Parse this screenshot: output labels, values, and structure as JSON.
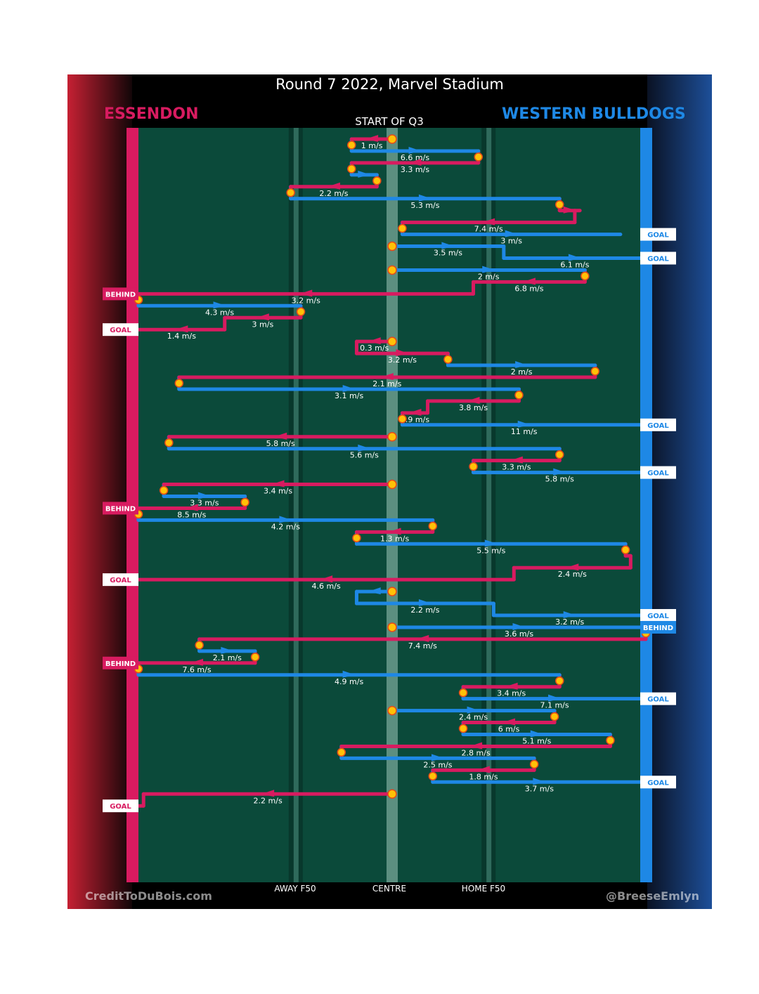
{
  "header": {
    "title": "Round 7 2022, Marvel Stadium",
    "subtitle": "START OF Q3",
    "home_team": "ESSENDON",
    "away_team": "WESTERN BULLDOGS"
  },
  "footer": {
    "credit_left": "CreditToDuBois.com",
    "credit_right": "@BreeseEmlyn"
  },
  "colors": {
    "essendon": "#d81b60",
    "bulldogs": "#1e88e5",
    "field": "#0b4a3a",
    "marker_fill": "#ffc107",
    "marker_ring": "#e64a19"
  },
  "chart_data": {
    "type": "line",
    "description_units": "x = field position (0 = Essendon goal line, 100 = Western Bulldogs goal line); each chain ends at a restart, goal or behind",
    "x_tick_labels": [
      {
        "label": "AWAY F50",
        "x": 31
      },
      {
        "label": "CENTRE",
        "x": 50
      },
      {
        "label": "HOME F50",
        "x": 69
      }
    ],
    "outcome_labels": {
      "goal": "GOAL",
      "behind": "BEHIND"
    },
    "segments": [
      {
        "team": "essendon",
        "speed": "1 m/s",
        "from": 50,
        "to": 42
      },
      {
        "team": "bulldogs",
        "speed": "6.6 m/s",
        "from": 42,
        "to": 67
      },
      {
        "team": "essendon",
        "speed": "3.3 m/s",
        "from": 67,
        "to": 42
      },
      {
        "team": "bulldogs",
        "speed": "",
        "from": 42,
        "to": 47
      },
      {
        "team": "essendon",
        "speed": "2.2 m/s",
        "from": 47,
        "to": 30
      },
      {
        "team": "bulldogs",
        "speed": "5.3 m/s",
        "from": 30,
        "to": 83
      },
      {
        "team": "essendon",
        "speed": "",
        "from": 83,
        "to": 87
      },
      {
        "team": "essendon",
        "speed": "7.4 m/s",
        "from": 86,
        "to": 52
      },
      {
        "team": "bulldogs",
        "speed": "3 m/s",
        "from": 52,
        "to": 95,
        "outcome": "goal"
      },
      {
        "team": "bulldogs",
        "speed": "3.5 m/s",
        "from": 50,
        "to": 72
      },
      {
        "team": "bulldogs",
        "speed": "6.1 m/s",
        "from": 72,
        "to": 100,
        "outcome": "goal"
      },
      {
        "team": "bulldogs",
        "speed": "2 m/s",
        "from": 50,
        "to": 88
      },
      {
        "team": "essendon",
        "speed": "6.8 m/s",
        "from": 88,
        "to": 66
      },
      {
        "team": "essendon",
        "speed": "3.2 m/s",
        "from": 66,
        "to": 0,
        "outcome": "behind"
      },
      {
        "team": "bulldogs",
        "speed": "4.3 m/s",
        "from": 0,
        "to": 32
      },
      {
        "team": "essendon",
        "speed": "3 m/s",
        "from": 32,
        "to": 17
      },
      {
        "team": "essendon",
        "speed": "1.4 m/s",
        "from": 17,
        "to": 0,
        "outcome": "goal"
      },
      {
        "team": "essendon",
        "speed": "0.3 m/s",
        "from": 50,
        "to": 43
      },
      {
        "team": "essendon",
        "speed": "3.2 m/s",
        "from": 43,
        "to": 61
      },
      {
        "team": "bulldogs",
        "speed": "2 m/s",
        "from": 61,
        "to": 90
      },
      {
        "team": "essendon",
        "speed": "2.1 m/s",
        "from": 90,
        "to": 8
      },
      {
        "team": "bulldogs",
        "speed": "3.1 m/s",
        "from": 8,
        "to": 75
      },
      {
        "team": "essendon",
        "speed": "3.8 m/s",
        "from": 75,
        "to": 57
      },
      {
        "team": "essendon",
        "speed": "0.9 m/s",
        "from": 57,
        "to": 52
      },
      {
        "team": "bulldogs",
        "speed": "11 m/s",
        "from": 52,
        "to": 100,
        "outcome": "goal"
      },
      {
        "team": "essendon",
        "speed": "5.8 m/s",
        "from": 50,
        "to": 6
      },
      {
        "team": "bulldogs",
        "speed": "5.6 m/s",
        "from": 6,
        "to": 83
      },
      {
        "team": "essendon",
        "speed": "3.3 m/s",
        "from": 83,
        "to": 66
      },
      {
        "team": "bulldogs",
        "speed": "5.8 m/s",
        "from": 66,
        "to": 100,
        "outcome": "goal"
      },
      {
        "team": "essendon",
        "speed": "3.4 m/s",
        "from": 50,
        "to": 5
      },
      {
        "team": "bulldogs",
        "speed": "3.3 m/s",
        "from": 5,
        "to": 21
      },
      {
        "team": "essendon",
        "speed": "8.5 m/s",
        "from": 21,
        "to": 0,
        "outcome": "behind"
      },
      {
        "team": "bulldogs",
        "speed": "4.2 m/s",
        "from": 0,
        "to": 58
      },
      {
        "team": "essendon",
        "speed": "1.3 m/s",
        "from": 58,
        "to": 43
      },
      {
        "team": "bulldogs",
        "speed": "5.5 m/s",
        "from": 43,
        "to": 96
      },
      {
        "team": "essendon",
        "speed": "",
        "from": 96,
        "to": 97
      },
      {
        "team": "essendon",
        "speed": "2.4 m/s",
        "from": 97,
        "to": 74
      },
      {
        "team": "essendon",
        "speed": "4.6 m/s",
        "from": 74,
        "to": 0,
        "outcome": "goal"
      },
      {
        "team": "bulldogs",
        "speed": "",
        "from": 50,
        "to": 43
      },
      {
        "team": "bulldogs",
        "speed": "2.2 m/s",
        "from": 43,
        "to": 70
      },
      {
        "team": "bulldogs",
        "speed": "3.2 m/s",
        "from": 70,
        "to": 100,
        "outcome": "goal"
      },
      {
        "team": "bulldogs",
        "speed": "3.6 m/s",
        "from": 50,
        "to": 100,
        "outcome": "behind"
      },
      {
        "team": "essendon",
        "speed": "7.4 m/s",
        "from": 100,
        "to": 12
      },
      {
        "team": "bulldogs",
        "speed": "2.1 m/s",
        "from": 12,
        "to": 23
      },
      {
        "team": "essendon",
        "speed": "7.6 m/s",
        "from": 23,
        "to": 0,
        "outcome": "behind"
      },
      {
        "team": "bulldogs",
        "speed": "4.9 m/s",
        "from": 0,
        "to": 83
      },
      {
        "team": "essendon",
        "speed": "3.4 m/s",
        "from": 83,
        "to": 64
      },
      {
        "team": "bulldogs",
        "speed": "7.1 m/s",
        "from": 64,
        "to": 100,
        "outcome": "goal"
      },
      {
        "team": "bulldogs",
        "speed": "2.4 m/s",
        "from": 50,
        "to": 82
      },
      {
        "team": "essendon",
        "speed": "6 m/s",
        "from": 82,
        "to": 64
      },
      {
        "team": "bulldogs",
        "speed": "5.1 m/s",
        "from": 64,
        "to": 93
      },
      {
        "team": "essendon",
        "speed": "2.8 m/s",
        "from": 93,
        "to": 40
      },
      {
        "team": "bulldogs",
        "speed": "2.5 m/s",
        "from": 40,
        "to": 78
      },
      {
        "team": "essendon",
        "speed": "1.8 m/s",
        "from": 78,
        "to": 58
      },
      {
        "team": "bulldogs",
        "speed": "3.7 m/s",
        "from": 58,
        "to": 100,
        "outcome": "goal"
      },
      {
        "team": "essendon",
        "speed": "2.2 m/s",
        "from": 50,
        "to": 1
      },
      {
        "team": "essendon",
        "speed": "",
        "from": 1,
        "to": 0,
        "outcome": "goal"
      }
    ],
    "restarts": [
      0,
      9,
      11,
      17,
      25,
      29,
      38,
      41,
      48,
      55
    ]
  }
}
